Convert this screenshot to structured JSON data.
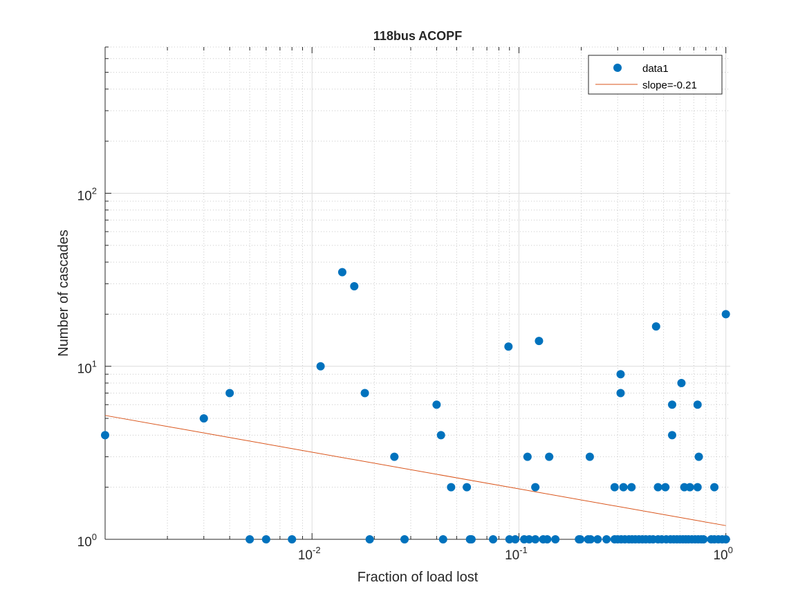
{
  "chart_data": {
    "type": "scatter",
    "title": "118bus ACOPF",
    "xlabel": "Fraction of load lost",
    "ylabel": "Number of cascades",
    "xscale": "log",
    "yscale": "log",
    "xlim": [
      0.001,
      1.05
    ],
    "ylim": [
      1,
      700
    ],
    "grid": true,
    "minor_grid": true,
    "legend_position": "top-right",
    "x_tick_labels": [
      {
        "base": "10",
        "exp": "-2"
      },
      {
        "base": "10",
        "exp": "-1"
      },
      {
        "base": "10",
        "exp": "0"
      }
    ],
    "y_tick_labels": [
      {
        "base": "10",
        "exp": "0"
      },
      {
        "base": "10",
        "exp": "1"
      },
      {
        "base": "10",
        "exp": "2"
      }
    ],
    "series": [
      {
        "name": "data1",
        "kind": "markers",
        "color": "#0072BD",
        "points": [
          [
            0.001,
            4
          ],
          [
            0.003,
            5
          ],
          [
            0.004,
            7
          ],
          [
            0.011,
            10
          ],
          [
            0.014,
            35
          ],
          [
            0.016,
            29
          ],
          [
            0.018,
            7
          ],
          [
            0.025,
            3
          ],
          [
            0.04,
            6
          ],
          [
            0.042,
            4
          ],
          [
            0.047,
            2
          ],
          [
            0.056,
            2
          ],
          [
            0.089,
            13
          ],
          [
            0.11,
            3
          ],
          [
            0.12,
            2
          ],
          [
            0.125,
            14
          ],
          [
            0.14,
            3
          ],
          [
            0.22,
            3
          ],
          [
            0.29,
            2
          ],
          [
            0.31,
            9
          ],
          [
            0.31,
            7
          ],
          [
            0.32,
            2
          ],
          [
            0.35,
            2
          ],
          [
            0.46,
            17
          ],
          [
            0.47,
            2
          ],
          [
            0.51,
            2
          ],
          [
            0.55,
            6
          ],
          [
            0.55,
            4
          ],
          [
            0.61,
            8
          ],
          [
            0.63,
            2
          ],
          [
            0.67,
            2
          ],
          [
            0.73,
            6
          ],
          [
            0.74,
            3
          ],
          [
            0.73,
            2
          ],
          [
            0.88,
            2
          ],
          [
            1.0,
            20
          ],
          [
            0.005,
            1
          ],
          [
            0.006,
            1
          ],
          [
            0.008,
            1
          ],
          [
            0.019,
            1
          ],
          [
            0.028,
            1
          ],
          [
            0.043,
            1
          ],
          [
            0.058,
            1
          ],
          [
            0.059,
            1
          ],
          [
            0.075,
            1
          ],
          [
            0.09,
            1
          ],
          [
            0.096,
            1
          ],
          [
            0.106,
            1
          ],
          [
            0.112,
            1
          ],
          [
            0.12,
            1
          ],
          [
            0.131,
            1
          ],
          [
            0.137,
            1
          ],
          [
            0.15,
            1
          ],
          [
            0.195,
            1
          ],
          [
            0.198,
            1
          ],
          [
            0.216,
            1
          ],
          [
            0.222,
            1
          ],
          [
            0.24,
            1
          ],
          [
            0.265,
            1
          ],
          [
            0.29,
            1
          ],
          [
            0.3,
            1
          ],
          [
            0.312,
            1
          ],
          [
            0.325,
            1
          ],
          [
            0.34,
            1
          ],
          [
            0.352,
            1
          ],
          [
            0.365,
            1
          ],
          [
            0.38,
            1
          ],
          [
            0.395,
            1
          ],
          [
            0.41,
            1
          ],
          [
            0.428,
            1
          ],
          [
            0.445,
            1
          ],
          [
            0.47,
            1
          ],
          [
            0.49,
            1
          ],
          [
            0.515,
            1
          ],
          [
            0.54,
            1
          ],
          [
            0.56,
            1
          ],
          [
            0.58,
            1
          ],
          [
            0.6,
            1
          ],
          [
            0.62,
            1
          ],
          [
            0.64,
            1
          ],
          [
            0.66,
            1
          ],
          [
            0.685,
            1
          ],
          [
            0.71,
            1
          ],
          [
            0.735,
            1
          ],
          [
            0.76,
            1
          ],
          [
            0.78,
            1
          ],
          [
            0.85,
            1
          ],
          [
            0.88,
            1
          ],
          [
            0.92,
            1
          ],
          [
            0.96,
            1
          ],
          [
            1.0,
            1
          ]
        ]
      },
      {
        "name": "slope=-0.21",
        "kind": "line",
        "color": "#D95319",
        "points": [
          [
            0.001,
            5.2
          ],
          [
            1.0,
            1.2
          ]
        ]
      }
    ]
  }
}
